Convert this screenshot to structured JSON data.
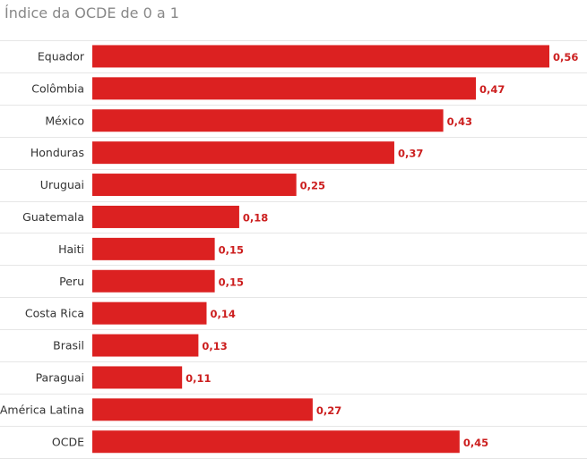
{
  "chart_data": {
    "type": "bar",
    "orientation": "horizontal",
    "title": "Índice da OCDE de 0 a 1",
    "categories": [
      "Equador",
      "Colômbia",
      "México",
      "Honduras",
      "Uruguai",
      "Guatemala",
      "Haiti",
      "Peru",
      "Costa Rica",
      "Brasil",
      "Paraguai",
      "América Latina",
      "OCDE"
    ],
    "values": [
      0.56,
      0.47,
      0.43,
      0.37,
      0.25,
      0.18,
      0.15,
      0.15,
      0.14,
      0.13,
      0.11,
      0.27,
      0.45
    ],
    "value_labels": [
      "0,56",
      "0,47",
      "0,43",
      "0,37",
      "0,25",
      "0,18",
      "0,15",
      "0,15",
      "0,14",
      "0,13",
      "0,11",
      "0,27",
      "0,45"
    ],
    "xlim": [
      0,
      0.56
    ],
    "grid": true,
    "bar_color": "#dc2121",
    "label_color": "#cc1f1f"
  }
}
